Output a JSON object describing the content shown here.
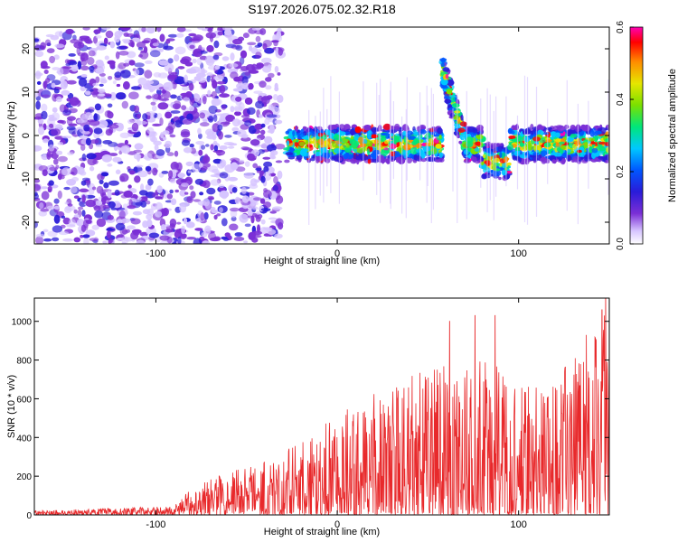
{
  "figure": {
    "title": "S197.2026.075.02.32.R18"
  },
  "chart_data": [
    {
      "type": "heatmap",
      "xlabel": "Height of straight line (km)",
      "ylabel": "Frequency (Hz)",
      "xlim": [
        -167,
        150
      ],
      "ylim": [
        -25,
        25
      ],
      "x_ticks": [
        -100,
        0,
        100
      ],
      "y_ticks": [
        -20,
        -10,
        0,
        10,
        20
      ],
      "colorbar": {
        "label": "Normalized spectral amplitude",
        "range": [
          0.0,
          0.6
        ],
        "ticks": [
          0.0,
          0.2,
          0.4,
          0.6
        ],
        "colormap": [
          "#ffffff",
          "#d6c4ff",
          "#7b2fd6",
          "#2a1bd8",
          "#0057ff",
          "#00c8ff",
          "#00e67a",
          "#7be000",
          "#e6e600",
          "#ff8c00",
          "#ff0000",
          "#ff00b4"
        ]
      },
      "features": {
        "noise_region_x": [
          -167,
          -31
        ],
        "signal_band_center_hz": -2,
        "signal_band_width_hz": 8,
        "signal_peak_x": [
          -28,
          150
        ],
        "excursion": {
          "x": [
            58,
            75
          ],
          "max_hz": 15
        }
      }
    },
    {
      "type": "line",
      "xlabel": "Height of straight line (km)",
      "ylabel": "SNR (10 * v/v)",
      "xlim": [
        -167,
        150
      ],
      "ylim": [
        0,
        1120
      ],
      "x_ticks": [
        -100,
        0,
        100
      ],
      "y_ticks": [
        0,
        200,
        400,
        600,
        800,
        1000
      ],
      "series": [
        {
          "color": "#e8292b",
          "envelope": {
            "x": [
              -167,
              -90,
              -80,
              -60,
              -40,
              -20,
              0,
              20,
              40,
              60,
              80,
              100,
              120,
              140,
              150
            ],
            "y": [
              12,
              25,
              80,
              130,
              160,
              210,
              290,
              360,
              400,
              430,
              450,
              400,
              380,
              560,
              600
            ]
          },
          "notable_peaks": [
            {
              "x": 62,
              "y": 1000
            },
            {
              "x": 76,
              "y": 1030
            },
            {
              "x": 87,
              "y": 1030
            },
            {
              "x": 146,
              "y": 1060
            },
            {
              "x": 148,
              "y": 1120
            }
          ]
        }
      ]
    }
  ]
}
